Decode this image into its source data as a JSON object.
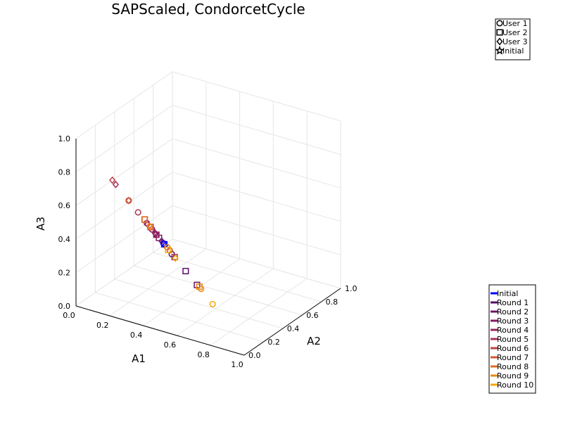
{
  "chart_data": {
    "type": "scatter",
    "projection": "3d",
    "title": "SAPScaled, CondorcetCycle",
    "xlabel": "A1",
    "ylabel": "A2",
    "zlabel": "A3",
    "xlim": [
      0.0,
      1.0
    ],
    "ylim": [
      0.0,
      1.0
    ],
    "zlim": [
      0.0,
      1.0
    ],
    "x_ticks": [
      "0.0",
      "0.2",
      "0.4",
      "0.6",
      "0.8",
      "1.0"
    ],
    "y_ticks": [
      "0.0",
      "0.2",
      "0.4",
      "0.6",
      "0.8",
      "1.0"
    ],
    "z_ticks": [
      "0.0",
      "0.2",
      "0.4",
      "0.6",
      "0.8",
      "1.0"
    ],
    "grid": true,
    "marker_legend": {
      "placement": "top-right",
      "entries": [
        {
          "label": "User 1",
          "marker": "circle"
        },
        {
          "label": "User 2",
          "marker": "square"
        },
        {
          "label": "User 3",
          "marker": "diamond"
        },
        {
          "label": "Initial",
          "marker": "star"
        }
      ]
    },
    "color_legend": {
      "placement": "bottom-right",
      "entries": [
        {
          "label": "Initial",
          "color": "#0000ff"
        },
        {
          "label": "Round 1",
          "color": "#5a0d6e"
        },
        {
          "label": "Round 2",
          "color": "#6e1468"
        },
        {
          "label": "Round 3",
          "color": "#821c62"
        },
        {
          "label": "Round 4",
          "color": "#96245c"
        },
        {
          "label": "Round 5",
          "color": "#aa3250"
        },
        {
          "label": "Round 6",
          "color": "#be4144"
        },
        {
          "label": "Round 7",
          "color": "#d25632"
        },
        {
          "label": "Round 8",
          "color": "#e06c22"
        },
        {
          "label": "Round 9",
          "color": "#ec8a14"
        },
        {
          "label": "Round 10",
          "color": "#f5a90a"
        }
      ]
    },
    "series": [
      {
        "round": 0,
        "user": "User 1",
        "marker": "circle",
        "x": 0.33,
        "y": 0.33,
        "z": 0.34
      },
      {
        "round": 0,
        "user": "User 2",
        "marker": "square",
        "x": 0.33,
        "y": 0.34,
        "z": 0.33
      },
      {
        "round": 0,
        "user": "User 3",
        "marker": "diamond",
        "x": 0.34,
        "y": 0.33,
        "z": 0.33
      },
      {
        "round": 1,
        "user": "User 1",
        "marker": "circle",
        "x": 0.38,
        "y": 0.33,
        "z": 0.29
      },
      {
        "round": 1,
        "user": "User 2",
        "marker": "square",
        "x": 0.44,
        "y": 0.37,
        "z": 0.19
      },
      {
        "round": 1,
        "user": "User 3",
        "marker": "diamond",
        "x": 0.32,
        "y": 0.33,
        "z": 0.35
      },
      {
        "round": 2,
        "user": "User 1",
        "marker": "circle",
        "x": 0.3,
        "y": 0.31,
        "z": 0.39
      },
      {
        "round": 2,
        "user": "User 2",
        "marker": "square",
        "x": 0.49,
        "y": 0.4,
        "z": 0.11
      },
      {
        "round": 2,
        "user": "User 3",
        "marker": "diamond",
        "x": 0.3,
        "y": 0.3,
        "z": 0.4
      },
      {
        "round": 3,
        "user": "User 1",
        "marker": "circle",
        "x": 0.28,
        "y": 0.3,
        "z": 0.42
      },
      {
        "round": 3,
        "user": "User 2",
        "marker": "square",
        "x": 0.31,
        "y": 0.32,
        "z": 0.37
      },
      {
        "round": 3,
        "user": "User 3",
        "marker": "diamond",
        "x": 0.27,
        "y": 0.27,
        "z": 0.46
      },
      {
        "round": 4,
        "user": "User 1",
        "marker": "circle",
        "x": 0.26,
        "y": 0.28,
        "z": 0.46
      },
      {
        "round": 4,
        "user": "User 2",
        "marker": "square",
        "x": 0.3,
        "y": 0.31,
        "z": 0.39
      },
      {
        "round": 4,
        "user": "User 3",
        "marker": "diamond",
        "x": 0.29,
        "y": 0.31,
        "z": 0.4
      },
      {
        "round": 5,
        "user": "User 1",
        "marker": "circle",
        "x": 0.22,
        "y": 0.26,
        "z": 0.52
      },
      {
        "round": 5,
        "user": "User 2",
        "marker": "square",
        "x": 0.38,
        "y": 0.36,
        "z": 0.26
      },
      {
        "round": 5,
        "user": "User 3",
        "marker": "diamond",
        "x": 0.11,
        "y": 0.22,
        "z": 0.67
      },
      {
        "round": 6,
        "user": "User 1",
        "marker": "circle",
        "x": 0.17,
        "y": 0.25,
        "z": 0.58
      },
      {
        "round": 6,
        "user": "User 2",
        "marker": "square",
        "x": 0.26,
        "y": 0.32,
        "z": 0.42
      },
      {
        "round": 6,
        "user": "User 3",
        "marker": "diamond",
        "x": 0.09,
        "y": 0.22,
        "z": 0.69
      },
      {
        "round": 7,
        "user": "User 1",
        "marker": "circle",
        "x": 0.34,
        "y": 0.38,
        "z": 0.28
      },
      {
        "round": 7,
        "user": "User 2",
        "marker": "square",
        "x": 0.23,
        "y": 0.31,
        "z": 0.46
      },
      {
        "round": 7,
        "user": "User 3",
        "marker": "diamond",
        "x": 0.17,
        "y": 0.25,
        "z": 0.58
      },
      {
        "round": 8,
        "user": "User 1",
        "marker": "circle",
        "x": 0.33,
        "y": 0.37,
        "z": 0.3
      },
      {
        "round": 8,
        "user": "User 2",
        "marker": "square",
        "x": 0.22,
        "y": 0.33,
        "z": 0.45
      },
      {
        "round": 8,
        "user": "User 3",
        "marker": "diamond",
        "x": 0.26,
        "y": 0.32,
        "z": 0.42
      },
      {
        "round": 9,
        "user": "User 1",
        "marker": "circle",
        "x": 0.48,
        "y": 0.46,
        "z": 0.06
      },
      {
        "round": 9,
        "user": "User 2",
        "marker": "square",
        "x": 0.47,
        "y": 0.46,
        "z": 0.07
      },
      {
        "round": 9,
        "user": "User 3",
        "marker": "diamond",
        "x": 0.26,
        "y": 0.31,
        "z": 0.43
      },
      {
        "round": 10,
        "user": "User 1",
        "marker": "circle",
        "x": 0.56,
        "y": 0.44,
        "z": 0.0
      },
      {
        "round": 10,
        "user": "User 2",
        "marker": "square",
        "x": 0.37,
        "y": 0.31,
        "z": 0.32
      },
      {
        "round": 10,
        "user": "User 3",
        "marker": "diamond",
        "x": 0.39,
        "y": 0.35,
        "z": 0.26
      }
    ]
  }
}
